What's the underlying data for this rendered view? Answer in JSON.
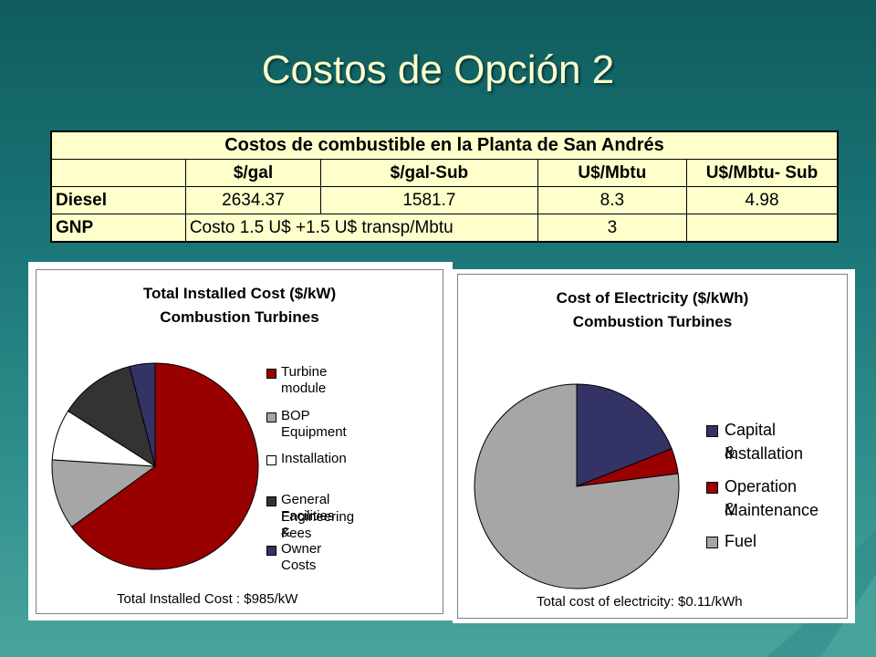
{
  "slide": {
    "title": "Costos de Opción 2"
  },
  "table": {
    "caption": "Costos de combustible en la Planta de San Andrés",
    "headers": [
      "",
      "$/gal",
      "$/gal-Sub",
      "U$/Mbtu",
      "U$/Mbtu- Sub"
    ],
    "rows": [
      {
        "label": "Diesel",
        "cells": [
          "2634.37",
          "1581.7",
          "8.3",
          "4.98"
        ]
      },
      {
        "label": "GNP",
        "merged": "Costo 1.5 U$ +1.5 U$ transp/Mbtu",
        "cells": [
          "3",
          ""
        ]
      }
    ]
  },
  "chart_data": [
    {
      "type": "pie",
      "title": "Total Installed Cost ($/kW)",
      "subtitle": "Combustion Turbines",
      "footnote": "Total Installed Cost : $985/kW",
      "legend_position": "right",
      "categories": [
        "Turbine module",
        "BOP Equipment",
        "Installation",
        "General Facilities & Engineering Fees",
        "Owner Costs"
      ],
      "legend_labels": [
        "Turbine module",
        "BOP Equipment",
        "Installation",
        "General Facilities &",
        "Engineering Fees",
        "Owner Costs"
      ],
      "values": [
        65,
        11,
        8,
        12,
        4
      ],
      "colors": [
        "#990000",
        "#a6a6a6",
        "#ffffff",
        "#333333",
        "#333366"
      ]
    },
    {
      "type": "pie",
      "title": "Cost of Electricity ($/kWh)",
      "subtitle": "Combustion Turbines",
      "footnote": "Total cost of electricity: $0.11/kWh",
      "legend_position": "right",
      "categories": [
        "Capital & Installation",
        "Operation & Maintenance",
        "Fuel"
      ],
      "legend_labels": [
        "Capital &",
        "Installation",
        "Operation &",
        "Maintenance",
        "Fuel"
      ],
      "values": [
        19,
        4,
        77
      ],
      "colors": [
        "#333366",
        "#990000",
        "#a6a6a6"
      ]
    }
  ]
}
